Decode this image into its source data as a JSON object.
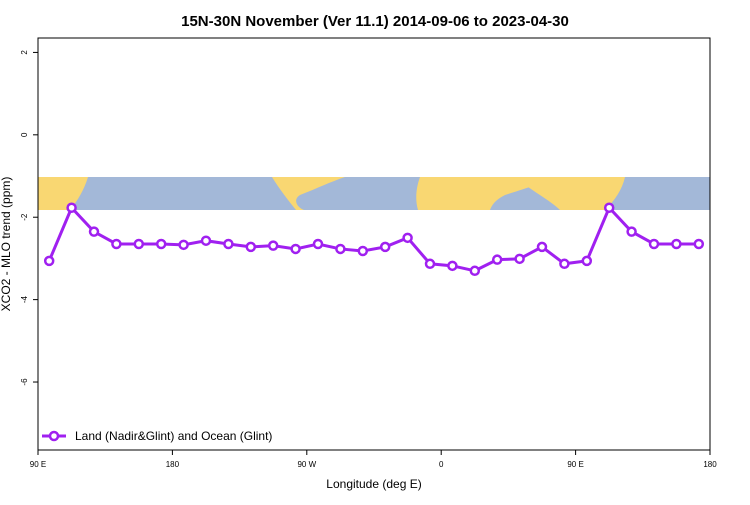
{
  "chart_data": {
    "type": "line",
    "title": "15N-30N November (Ver 11.1)   2014-09-06 to 2023-04-30",
    "x_label": "Longitude (deg E)",
    "y_label": "XCO2 - MLO trend (ppm)",
    "x": [
      97.5,
      112.5,
      127.5,
      142.5,
      157.5,
      172.5,
      187.5,
      202.5,
      217.5,
      232.5,
      247.5,
      262.5,
      277.5,
      292.5,
      307.5,
      322.5,
      337.5,
      352.5,
      367.5,
      382.5,
      397.5,
      412.5,
      427.5,
      442.5,
      457.5,
      472.5,
      487.5,
      502.5,
      517.5,
      532.5
    ],
    "series": [
      {
        "name": "Land (Nadir&Glint) and Ocean (Glint)",
        "color": "#a020f0",
        "values": [
          -3.06,
          -1.77,
          -2.35,
          -2.65,
          -2.65,
          -2.65,
          -2.67,
          -2.57,
          -2.65,
          -2.72,
          -2.69,
          -2.77,
          -2.65,
          -2.77,
          -2.82,
          -2.72,
          -2.5,
          -3.13,
          -3.18,
          -3.3,
          -3.03,
          -3.01,
          -2.72,
          -3.13,
          -3.06,
          -1.77,
          -2.35,
          -2.65,
          -2.65,
          -2.65
        ]
      }
    ],
    "xlim": [
      90,
      540
    ],
    "xticks": [
      {
        "value": 90,
        "label": "90 E"
      },
      {
        "value": 180,
        "label": "180"
      },
      {
        "value": 270,
        "label": "90 W"
      },
      {
        "value": 360,
        "label": "0"
      },
      {
        "value": 450,
        "label": "90 E"
      },
      {
        "value": 540,
        "label": "180"
      }
    ],
    "ylim": [
      -7.65,
      2.35
    ],
    "yticks": [
      2,
      0,
      -2,
      -4,
      -6
    ],
    "legend": "bottom-left"
  }
}
